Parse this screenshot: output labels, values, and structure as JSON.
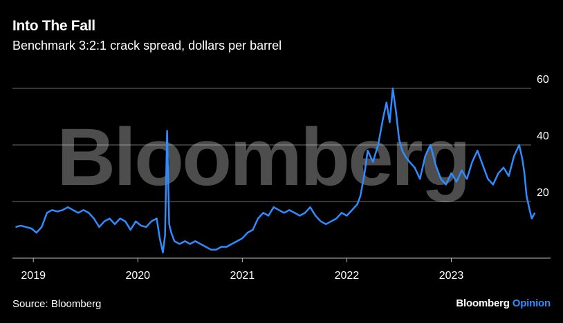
{
  "chart_data": {
    "type": "line",
    "title": "Into The Fall",
    "subtitle": "Benchmark 3:2:1 crack spread, dollars per barrel",
    "source": "Source: Bloomberg",
    "brand": {
      "name": "Bloomberg",
      "suffix": "Opinion"
    },
    "watermark": "Bloomberg",
    "ylim": [
      0,
      60
    ],
    "yticks": [
      "20",
      "40",
      "60"
    ],
    "ytick_values": [
      20,
      40,
      60
    ],
    "xlim": [
      2018.8,
      2023.95
    ],
    "xticks": [
      "2019",
      "2020",
      "2021",
      "2022",
      "2023"
    ],
    "xtick_values": [
      2019,
      2020,
      2021,
      2022,
      2023
    ],
    "grid": true,
    "series": [
      {
        "color": "#2f8cff",
        "x": [
          2018.83,
          2018.88,
          2018.93,
          2018.98,
          2019.03,
          2019.08,
          2019.13,
          2019.18,
          2019.23,
          2019.28,
          2019.33,
          2019.38,
          2019.43,
          2019.48,
          2019.53,
          2019.58,
          2019.63,
          2019.68,
          2019.73,
          2019.78,
          2019.83,
          2019.88,
          2019.93,
          2019.98,
          2020.03,
          2020.08,
          2020.13,
          2020.18,
          2020.21,
          2020.24,
          2020.26,
          2020.28,
          2020.3,
          2020.32,
          2020.35,
          2020.4,
          2020.45,
          2020.5,
          2020.55,
          2020.6,
          2020.65,
          2020.7,
          2020.75,
          2020.8,
          2020.85,
          2020.9,
          2020.95,
          2021.0,
          2021.05,
          2021.1,
          2021.15,
          2021.2,
          2021.25,
          2021.3,
          2021.35,
          2021.4,
          2021.45,
          2021.5,
          2021.55,
          2021.6,
          2021.65,
          2021.7,
          2021.75,
          2021.8,
          2021.85,
          2021.9,
          2021.95,
          2022.0,
          2022.05,
          2022.1,
          2022.13,
          2022.17,
          2022.2,
          2022.25,
          2022.3,
          2022.35,
          2022.38,
          2022.41,
          2022.44,
          2022.47,
          2022.5,
          2022.53,
          2022.56,
          2022.6,
          2022.65,
          2022.7,
          2022.75,
          2022.8,
          2022.85,
          2022.9,
          2022.95,
          2023.0,
          2023.05,
          2023.1,
          2023.15,
          2023.2,
          2023.25,
          2023.3,
          2023.35,
          2023.4,
          2023.45,
          2023.5,
          2023.55,
          2023.6,
          2023.65,
          2023.68,
          2023.7,
          2023.72,
          2023.75,
          2023.77,
          2023.8
        ],
        "values": [
          11,
          11.5,
          11,
          10.5,
          9,
          11,
          16,
          17,
          16.5,
          17,
          18,
          17,
          16,
          17,
          16,
          14,
          11,
          13,
          14,
          12,
          14,
          13,
          10,
          13,
          11.5,
          11,
          13,
          14,
          7,
          2,
          8,
          45,
          12,
          9,
          6,
          5,
          6,
          5,
          6,
          5,
          4,
          3,
          3,
          4,
          4,
          5,
          6,
          7,
          9,
          10,
          14,
          16,
          15,
          18,
          17,
          16,
          17,
          16,
          15,
          16,
          18,
          15,
          13,
          12,
          13,
          14,
          16,
          15,
          17,
          19,
          22,
          30,
          38,
          34,
          40,
          50,
          55,
          48,
          60,
          52,
          42,
          38,
          36,
          34,
          32,
          28,
          36,
          40,
          33,
          28,
          26,
          30,
          27,
          31,
          28,
          34,
          38,
          33,
          28,
          26,
          30,
          32,
          29,
          36,
          40,
          35,
          30,
          22,
          17,
          14,
          16
        ]
      }
    ]
  }
}
